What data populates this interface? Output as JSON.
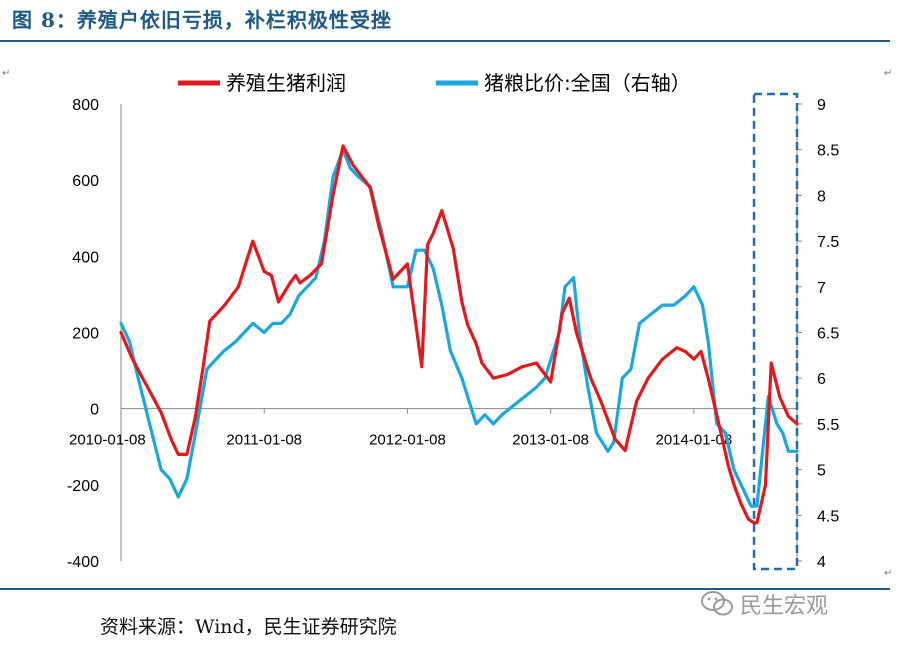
{
  "header": {
    "title": "图 8：养殖户依旧亏损，补栏积极性受挫"
  },
  "footer": {
    "source": "资料来源：Wind，民生证券研究院",
    "brand": "民生宏观"
  },
  "chart_data": {
    "type": "line",
    "legend_placement": "top",
    "grid": false,
    "x_tick_labels": [
      "2010-01-08",
      "2011-01-08",
      "2012-01-08",
      "2013-01-08",
      "2014-01-08"
    ],
    "left_axis": {
      "ylim": [
        -400,
        800
      ],
      "ticks": [
        800,
        600,
        400,
        200,
        0,
        -200,
        -400
      ]
    },
    "right_axis": {
      "ylim": [
        4,
        9
      ],
      "ticks": [
        "9",
        "8.5",
        "8",
        "7.5",
        "7",
        "6.5",
        "6",
        "5.5",
        "5",
        "4.5",
        "4"
      ]
    },
    "highlight_box": {
      "from": 2014.42,
      "to": 2014.72,
      "color": "#1f6fb0",
      "style": "dashed"
    },
    "series": [
      {
        "name": "养殖生猪利润",
        "axis": "left",
        "color": "#e3181c",
        "x": [
          2010.0,
          2010.08,
          2010.18,
          2010.28,
          2010.35,
          2010.4,
          2010.46,
          2010.52,
          2010.57,
          2010.62,
          2010.72,
          2010.82,
          2010.92,
          2011.0,
          2011.05,
          2011.1,
          2011.18,
          2011.22,
          2011.25,
          2011.32,
          2011.4,
          2011.48,
          2011.55,
          2011.62,
          2011.7,
          2011.74,
          2011.8,
          2011.9,
          2012.0,
          2012.1,
          2012.14,
          2012.18,
          2012.24,
          2012.32,
          2012.38,
          2012.42,
          2012.48,
          2012.52,
          2012.6,
          2012.7,
          2012.8,
          2012.9,
          2013.0,
          2013.04,
          2013.08,
          2013.13,
          2013.18,
          2013.28,
          2013.35,
          2013.45,
          2013.52,
          2013.6,
          2013.68,
          2013.78,
          2013.88,
          2013.94,
          2014.0,
          2014.05,
          2014.1,
          2014.18,
          2014.24,
          2014.28,
          2014.33,
          2014.38,
          2014.42,
          2014.44,
          2014.5,
          2014.54,
          2014.6,
          2014.66,
          2014.72
        ],
        "values": [
          200,
          130,
          60,
          -10,
          -80,
          -120,
          -120,
          -20,
          100,
          230,
          270,
          320,
          440,
          360,
          350,
          280,
          330,
          350,
          330,
          350,
          380,
          560,
          690,
          640,
          600,
          580,
          480,
          340,
          380,
          110,
          430,
          460,
          520,
          420,
          280,
          220,
          170,
          120,
          80,
          90,
          110,
          120,
          70,
          160,
          250,
          290,
          200,
          80,
          20,
          -80,
          -110,
          20,
          80,
          130,
          160,
          150,
          130,
          150,
          80,
          -50,
          -150,
          -200,
          -250,
          -290,
          -300,
          -300,
          -200,
          120,
          30,
          -20,
          -40
        ]
      },
      {
        "name": "猪粮比价:全国（右轴）",
        "axis": "right",
        "color": "#1aa6df",
        "x": [
          2010.0,
          2010.06,
          2010.12,
          2010.2,
          2010.28,
          2010.34,
          2010.4,
          2010.46,
          2010.52,
          2010.6,
          2010.66,
          2010.72,
          2010.8,
          2010.86,
          2010.92,
          2011.0,
          2011.06,
          2011.12,
          2011.18,
          2011.24,
          2011.3,
          2011.36,
          2011.42,
          2011.48,
          2011.55,
          2011.6,
          2011.66,
          2011.74,
          2011.82,
          2011.9,
          2012.0,
          2012.06,
          2012.12,
          2012.18,
          2012.24,
          2012.3,
          2012.38,
          2012.42,
          2012.48,
          2012.54,
          2012.6,
          2012.66,
          2012.74,
          2012.82,
          2012.9,
          2012.96,
          2013.0,
          2013.06,
          2013.1,
          2013.16,
          2013.2,
          2013.26,
          2013.32,
          2013.4,
          2013.44,
          2013.5,
          2013.56,
          2013.62,
          2013.7,
          2013.78,
          2013.86,
          2013.94,
          2014.0,
          2014.06,
          2014.1,
          2014.16,
          2014.22,
          2014.28,
          2014.34,
          2014.4,
          2014.44,
          2014.48,
          2014.52,
          2014.58,
          2014.62,
          2014.66,
          2014.72
        ],
        "values": [
          6.6,
          6.4,
          6.0,
          5.5,
          5.0,
          4.9,
          4.7,
          4.9,
          5.4,
          6.1,
          6.2,
          6.3,
          6.4,
          6.5,
          6.6,
          6.5,
          6.6,
          6.6,
          6.7,
          6.9,
          7.0,
          7.1,
          7.5,
          8.2,
          8.5,
          8.3,
          8.2,
          8.1,
          7.6,
          7.0,
          7.0,
          7.4,
          7.4,
          7.2,
          6.8,
          6.3,
          6.0,
          5.8,
          5.5,
          5.6,
          5.5,
          5.6,
          5.7,
          5.8,
          5.9,
          6.0,
          6.2,
          6.5,
          7.0,
          7.1,
          6.5,
          5.9,
          5.4,
          5.2,
          5.3,
          6.0,
          6.1,
          6.6,
          6.7,
          6.8,
          6.8,
          6.9,
          7.0,
          6.8,
          6.4,
          5.5,
          5.4,
          5.0,
          4.8,
          4.6,
          4.6,
          5.2,
          5.8,
          5.5,
          5.4,
          5.2,
          5.2
        ]
      }
    ]
  }
}
